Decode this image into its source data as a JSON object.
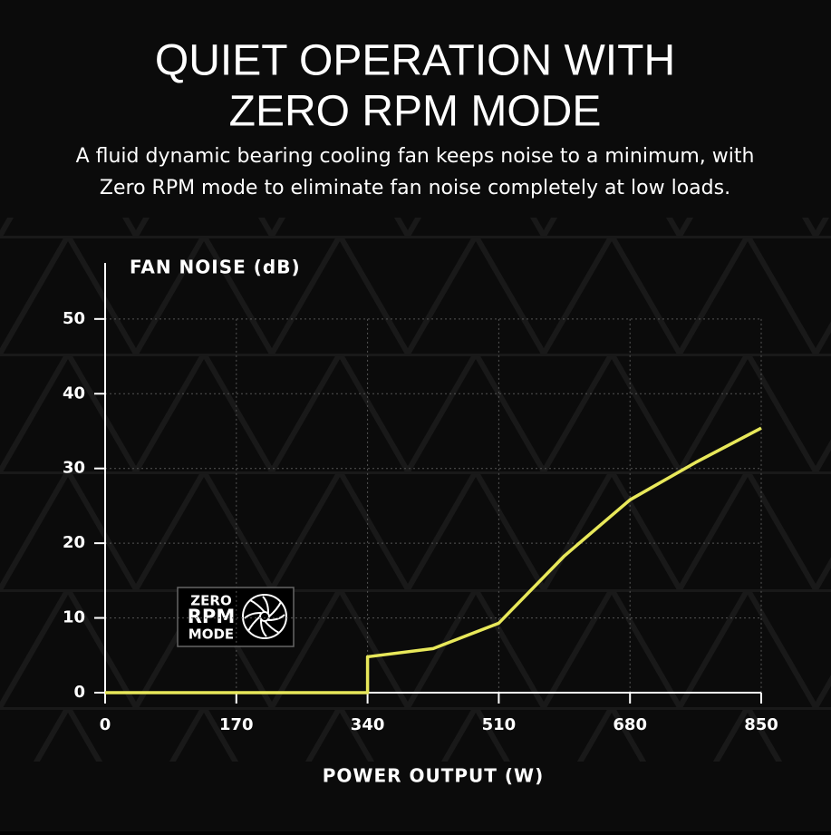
{
  "chart_data": {
    "type": "line",
    "title": [
      "QUIET OPERATION WITH",
      "ZERO RPM MODE"
    ],
    "subtitle": [
      "A fluid dynamic bearing cooling fan keeps noise to a minimum, with",
      "Zero RPM mode to eliminate fan noise completely at low loads."
    ],
    "y_label": "FAN NOISE (dB)",
    "x_label": "POWER OUTPUT (W)",
    "annotations": [
      "ZERO",
      "RPM",
      "MODE"
    ],
    "x": [
      0,
      340,
      340,
      425,
      510,
      595,
      680,
      765,
      850
    ],
    "values": [
      0,
      0,
      4.8,
      5.9,
      9.3,
      18.3,
      25.8,
      30.8,
      35.4
    ],
    "color": "#e8e85a",
    "xlim": [
      0,
      850
    ],
    "xticks": [
      0,
      170,
      340,
      510,
      680,
      850
    ],
    "ylim": [
      0,
      57.5
    ],
    "yticks": [
      0,
      10,
      20,
      30,
      40,
      50
    ],
    "grid": true
  }
}
